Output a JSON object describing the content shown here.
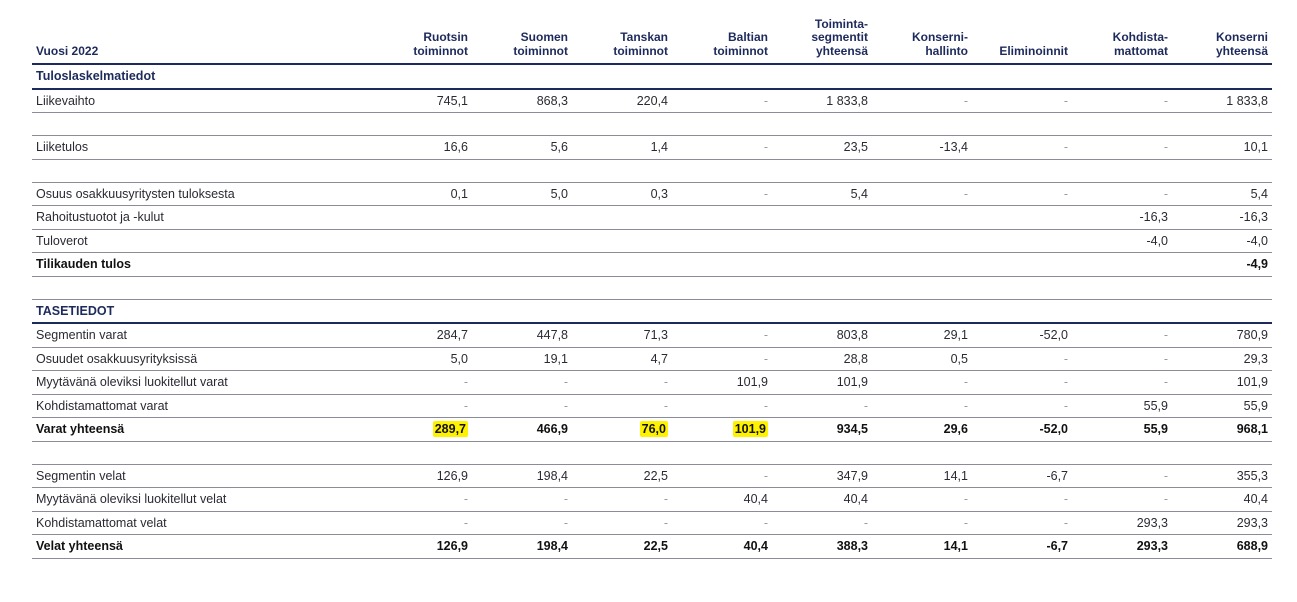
{
  "header": {
    "year": "Vuosi 2022",
    "columns": [
      [
        "Ruotsin",
        "toiminnot"
      ],
      [
        "Suomen",
        "toiminnot"
      ],
      [
        "Tanskan",
        "toiminnot"
      ],
      [
        "Baltian",
        "toiminnot"
      ],
      [
        "Toiminta-",
        "segmentit",
        "yhteensä"
      ],
      [
        "Konserni-",
        "hallinto"
      ],
      [
        "Eliminoinnit"
      ],
      [
        "Kohdista-",
        "mattomat"
      ],
      [
        "Konserni",
        "yhteensä"
      ]
    ]
  },
  "rows": [
    {
      "type": "section",
      "label": "Tuloslaskelmatiedot",
      "values": [
        "",
        "",
        "",
        "",
        "",
        "",
        "",
        "",
        ""
      ]
    },
    {
      "type": "row",
      "label": "Liikevaihto",
      "values": [
        "745,1",
        "868,3",
        "220,4",
        "-",
        "1 833,8",
        "-",
        "-",
        "-",
        "1 833,8"
      ]
    },
    {
      "type": "spacer"
    },
    {
      "type": "row",
      "label": "Liiketulos",
      "values": [
        "16,6",
        "5,6",
        "1,4",
        "-",
        "23,5",
        "-13,4",
        "-",
        "-",
        "10,1"
      ]
    },
    {
      "type": "spacer"
    },
    {
      "type": "row",
      "label": "Osuus osakkuusyritysten tuloksesta",
      "values": [
        "0,1",
        "5,0",
        "0,3",
        "-",
        "5,4",
        "-",
        "-",
        "-",
        "5,4"
      ]
    },
    {
      "type": "row",
      "label": "Rahoitustuotot ja -kulut",
      "values": [
        "",
        "",
        "",
        "",
        "",
        "",
        "",
        "-16,3",
        "-16,3"
      ]
    },
    {
      "type": "row",
      "label": "Tuloverot",
      "values": [
        "",
        "",
        "",
        "",
        "",
        "",
        "",
        "-4,0",
        "-4,0"
      ]
    },
    {
      "type": "total",
      "label": "Tilikauden tulos",
      "values": [
        "",
        "",
        "",
        "",
        "",
        "",
        "",
        "",
        "-4,9"
      ]
    },
    {
      "type": "spacer"
    },
    {
      "type": "section",
      "label": "TASETIEDOT",
      "values": [
        "",
        "",
        "",
        "",
        "",
        "",
        "",
        "",
        ""
      ]
    },
    {
      "type": "row",
      "label": "Segmentin varat",
      "values": [
        "284,7",
        "447,8",
        "71,3",
        "-",
        "803,8",
        "29,1",
        "-52,0",
        "-",
        "780,9"
      ]
    },
    {
      "type": "row",
      "label": "Osuudet osakkuusyrityksissä",
      "values": [
        "5,0",
        "19,1",
        "4,7",
        "-",
        "28,8",
        "0,5",
        "-",
        "-",
        "29,3"
      ]
    },
    {
      "type": "row",
      "label": "Myytävänä oleviksi luokitellut varat",
      "values": [
        "-",
        "-",
        "-",
        "101,9",
        "101,9",
        "-",
        "-",
        "-",
        "101,9"
      ]
    },
    {
      "type": "row",
      "label": "Kohdistamattomat varat",
      "values": [
        "-",
        "-",
        "-",
        "-",
        "-",
        "-",
        "-",
        "55,9",
        "55,9"
      ]
    },
    {
      "type": "total",
      "label": "Varat yhteensä",
      "values": [
        "289,7",
        "466,9",
        "76,0",
        "101,9",
        "934,5",
        "29,6",
        "-52,0",
        "55,9",
        "968,1"
      ],
      "highlight": [
        0,
        2,
        3
      ],
      "highlight_color": "#fff200"
    },
    {
      "type": "spacer"
    },
    {
      "type": "row",
      "label": "Segmentin velat",
      "values": [
        "126,9",
        "198,4",
        "22,5",
        "-",
        "347,9",
        "14,1",
        "-6,7",
        "-",
        "355,3"
      ]
    },
    {
      "type": "row",
      "label": "Myytävänä oleviksi luokitellut velat",
      "values": [
        "-",
        "-",
        "-",
        "40,4",
        "40,4",
        "-",
        "-",
        "-",
        "40,4"
      ]
    },
    {
      "type": "row",
      "label": "Kohdistamattomat velat",
      "values": [
        "-",
        "-",
        "-",
        "-",
        "-",
        "-",
        "-",
        "293,3",
        "293,3"
      ]
    },
    {
      "type": "total",
      "label": "Velat yhteensä",
      "values": [
        "126,9",
        "198,4",
        "22,5",
        "40,4",
        "388,3",
        "14,1",
        "-6,7",
        "293,3",
        "688,9"
      ]
    }
  ],
  "colors": {
    "header_text": "#1d2a5c",
    "rule": "#1d2a5c",
    "highlight": "#fff200"
  }
}
